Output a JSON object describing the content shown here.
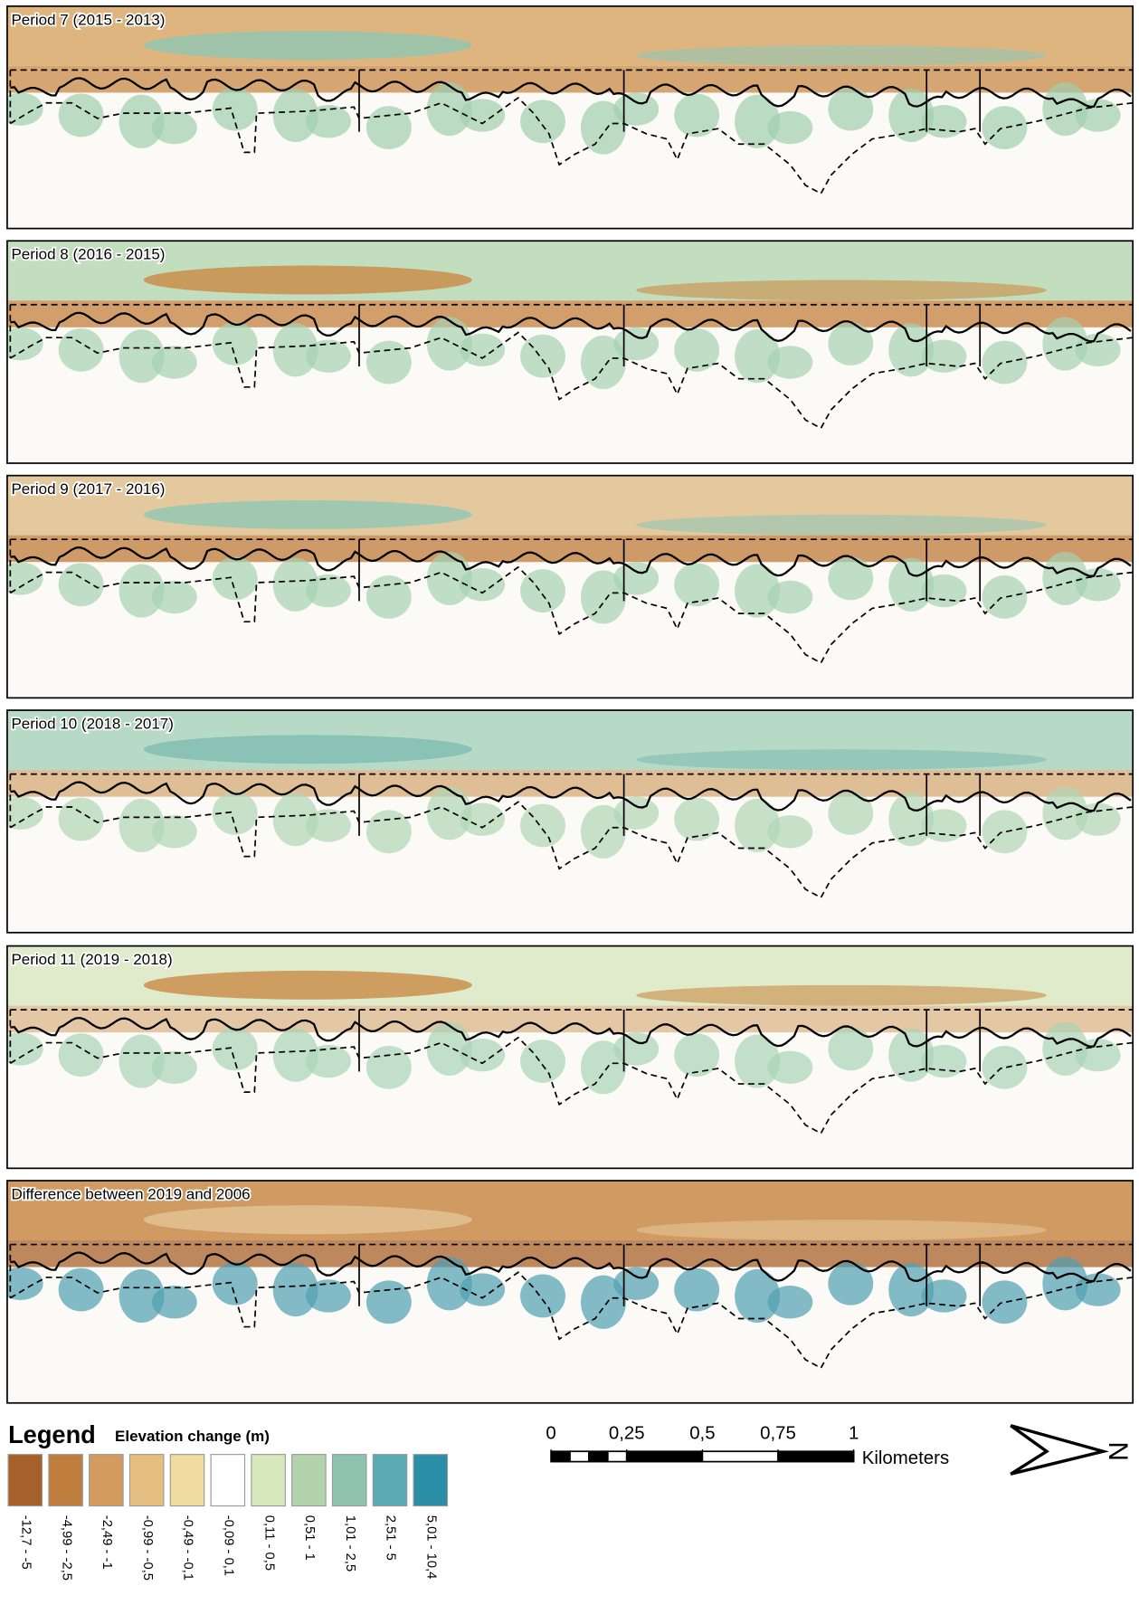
{
  "panels": [
    {
      "title": "Period 7 (2015 - 2013)"
    },
    {
      "title": "Period 8 (2016 - 2015)"
    },
    {
      "title": "Period 9 (2017 - 2016)"
    },
    {
      "title": "Period 10 (2018 - 2017)"
    },
    {
      "title": "Period 11 (2019 - 2018)"
    },
    {
      "title": "Difference between 2019 and 2006"
    }
  ],
  "legend": {
    "title": "Legend",
    "subtitle": "Elevation change (m)",
    "classes": [
      {
        "label": "-12,7 - -5",
        "color": "#a6602a"
      },
      {
        "label": "-4,99 - -2,5",
        "color": "#bf7d3e"
      },
      {
        "label": "-2,49 - -1",
        "color": "#d39c5e"
      },
      {
        "label": "-0,99 - -0,5",
        "color": "#e4bf80"
      },
      {
        "label": "-0,49 - -0,1",
        "color": "#efdc9e"
      },
      {
        "label": "-0,09 - 0,1",
        "color": "#ffffff"
      },
      {
        "label": "0,11 - 0,5",
        "color": "#d8e8bd"
      },
      {
        "label": "0,51 - 1",
        "color": "#b3d3ad"
      },
      {
        "label": "1,01 - 2,5",
        "color": "#8fc2ac"
      },
      {
        "label": "2,51 - 5",
        "color": "#5aaab3"
      },
      {
        "label": "5,01 - 10,4",
        "color": "#2a8ea6"
      }
    ]
  },
  "scale_bar": {
    "ticks": [
      0,
      {
        "value": 0.25,
        "label": "0,25"
      },
      {
        "value": 0.5,
        "label": "0,5"
      },
      {
        "value": 0.75,
        "label": "0,75"
      },
      1
    ],
    "unit": "Kilometers"
  },
  "north": "N"
}
